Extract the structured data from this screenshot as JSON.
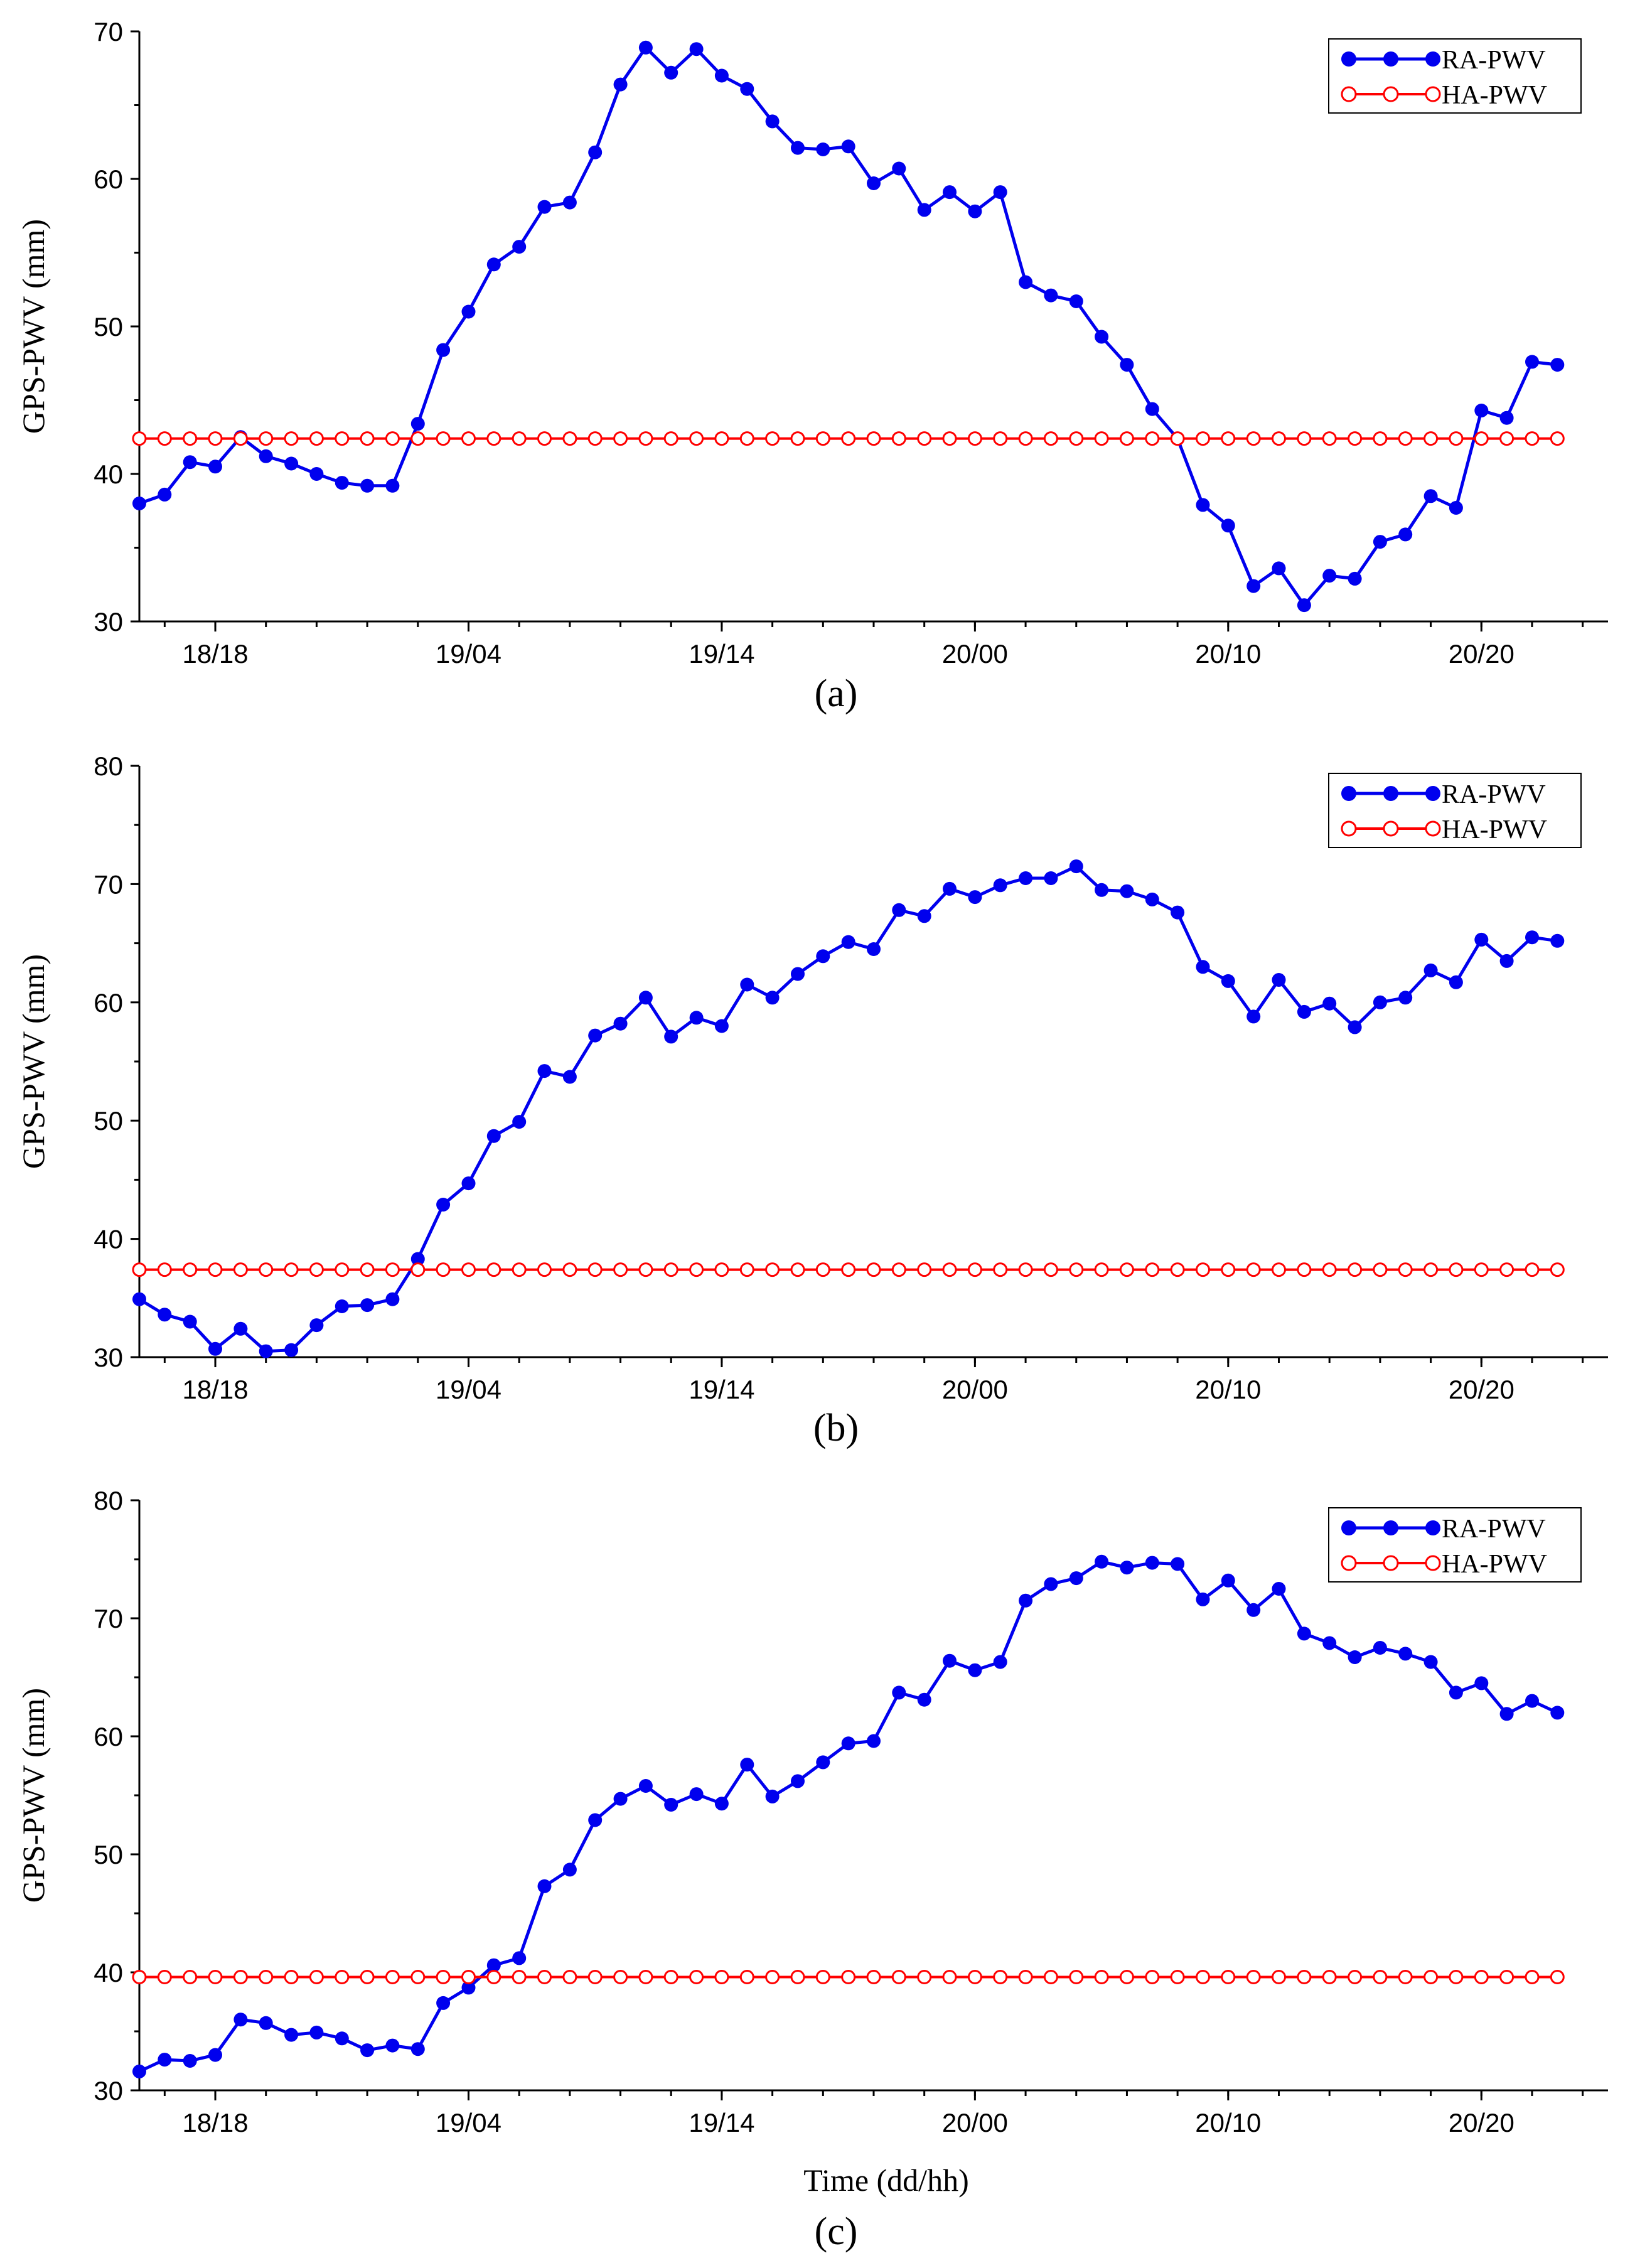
{
  "chart_data": [
    {
      "type": "line",
      "panel_label": "(a)",
      "ylabel": "GPS-PWV (mm)",
      "xlabel": "",
      "ylim": [
        30,
        70
      ],
      "yticks": [
        30,
        40,
        50,
        60,
        70
      ],
      "x_ticks": [
        {
          "hour": 3,
          "label": "18/18"
        },
        {
          "hour": 13,
          "label": "19/04"
        },
        {
          "hour": 23,
          "label": "19/14"
        },
        {
          "hour": 33,
          "label": "20/00"
        },
        {
          "hour": 43,
          "label": "20/10"
        },
        {
          "hour": 53,
          "label": "20/20"
        }
      ],
      "xlim": [
        0,
        58
      ],
      "legend": "top-right",
      "series": [
        {
          "name": "RA-PWV",
          "color": "#0000ee",
          "marker": "filled-circle",
          "values": [
            38.0,
            38.6,
            40.8,
            40.5,
            42.5,
            41.2,
            40.7,
            40.0,
            39.4,
            39.2,
            39.2,
            43.4,
            48.4,
            51.0,
            54.2,
            55.4,
            58.1,
            58.4,
            61.8,
            66.4,
            68.9,
            67.2,
            68.8,
            67.0,
            66.1,
            63.9,
            62.1,
            62.0,
            62.2,
            59.7,
            60.7,
            57.9,
            59.1,
            57.8,
            59.1,
            53.0,
            52.1,
            51.7,
            49.3,
            47.4,
            44.4,
            42.4,
            37.9,
            36.5,
            32.4,
            33.6,
            31.1,
            33.1,
            32.9,
            35.4,
            35.9,
            38.5,
            37.7,
            44.3,
            43.8,
            47.6,
            47.4
          ]
        },
        {
          "name": "HA-PWV",
          "color": "#ff0000",
          "marker": "open-circle",
          "constant": 42.4,
          "count": 57
        }
      ]
    },
    {
      "type": "line",
      "panel_label": "(b)",
      "ylabel": "GPS-PWV (mm)",
      "xlabel": "",
      "ylim": [
        30,
        80
      ],
      "yticks": [
        30,
        40,
        50,
        60,
        70,
        80
      ],
      "x_ticks": [
        {
          "hour": 3,
          "label": "18/18"
        },
        {
          "hour": 13,
          "label": "19/04"
        },
        {
          "hour": 23,
          "label": "19/14"
        },
        {
          "hour": 33,
          "label": "20/00"
        },
        {
          "hour": 43,
          "label": "20/10"
        },
        {
          "hour": 53,
          "label": "20/20"
        }
      ],
      "xlim": [
        0,
        58
      ],
      "legend": "top-right",
      "series": [
        {
          "name": "RA-PWV",
          "color": "#0000ee",
          "marker": "filled-circle",
          "values": [
            34.9,
            33.6,
            33.0,
            30.7,
            32.4,
            30.5,
            30.6,
            32.7,
            34.3,
            34.4,
            34.9,
            38.3,
            42.9,
            44.7,
            48.7,
            49.9,
            54.2,
            53.7,
            57.2,
            58.2,
            60.4,
            57.1,
            58.7,
            58.0,
            61.5,
            60.4,
            62.4,
            63.9,
            65.1,
            64.5,
            67.8,
            67.3,
            69.6,
            68.9,
            69.9,
            70.5,
            70.5,
            71.5,
            69.5,
            69.4,
            68.7,
            67.6,
            63.0,
            61.8,
            58.8,
            61.9,
            59.2,
            59.9,
            57.9,
            60.0,
            60.4,
            62.7,
            61.7,
            65.3,
            63.5,
            65.5,
            65.2
          ]
        },
        {
          "name": "HA-PWV",
          "color": "#ff0000",
          "marker": "open-circle",
          "constant": 37.4,
          "count": 57
        }
      ]
    },
    {
      "type": "line",
      "panel_label": "(c)",
      "ylabel": "GPS-PWV (mm)",
      "xlabel": "Time (dd/hh)",
      "ylim": [
        30,
        80
      ],
      "yticks": [
        30,
        40,
        50,
        60,
        70,
        80
      ],
      "x_ticks": [
        {
          "hour": 3,
          "label": "18/18"
        },
        {
          "hour": 13,
          "label": "19/04"
        },
        {
          "hour": 23,
          "label": "19/14"
        },
        {
          "hour": 33,
          "label": "20/00"
        },
        {
          "hour": 43,
          "label": "20/10"
        },
        {
          "hour": 53,
          "label": "20/20"
        }
      ],
      "xlim": [
        0,
        58
      ],
      "legend": "top-right",
      "series": [
        {
          "name": "RA-PWV",
          "color": "#0000ee",
          "marker": "filled-circle",
          "values": [
            31.6,
            32.6,
            32.5,
            33.0,
            36.0,
            35.7,
            34.7,
            34.9,
            34.4,
            33.4,
            33.8,
            33.5,
            37.4,
            38.7,
            40.6,
            41.2,
            47.3,
            48.7,
            52.9,
            54.7,
            55.8,
            54.2,
            55.1,
            54.3,
            57.6,
            54.9,
            56.2,
            57.8,
            59.4,
            59.6,
            63.7,
            63.1,
            66.4,
            65.6,
            66.3,
            71.5,
            72.9,
            73.4,
            74.8,
            74.3,
            74.7,
            74.6,
            71.6,
            73.2,
            70.7,
            72.5,
            68.7,
            67.9,
            66.7,
            67.5,
            67.0,
            66.3,
            63.7,
            64.5,
            61.9,
            63.0,
            62.0
          ]
        },
        {
          "name": "HA-PWV",
          "color": "#ff0000",
          "marker": "open-circle",
          "constant": 39.6,
          "count": 57
        }
      ]
    }
  ]
}
